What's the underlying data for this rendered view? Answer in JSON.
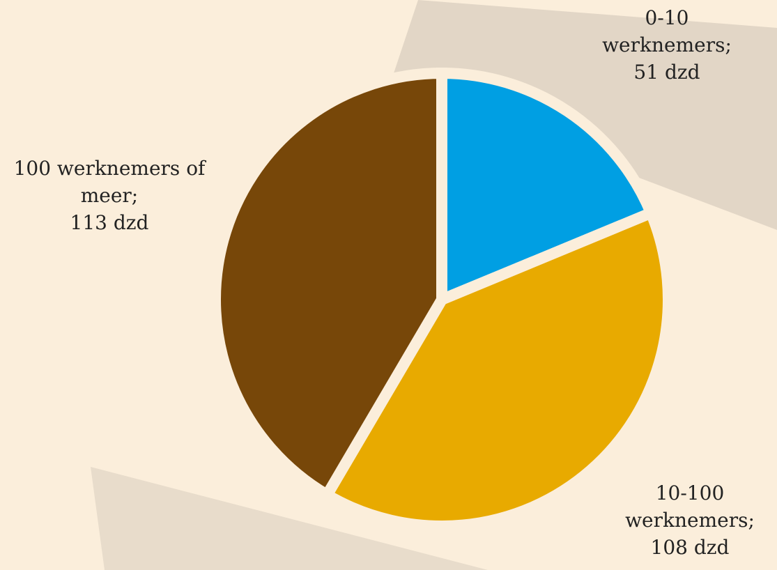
{
  "chart_data": {
    "type": "pie",
    "categories": [
      "0-10 werknemers;",
      "10-100 werknemers;",
      "100 werknemers of meer;"
    ],
    "values": [
      51,
      108,
      113
    ],
    "value_labels": [
      "51 dzd",
      "108 dzd",
      "113 dzd"
    ],
    "colors": [
      "#009fe3",
      "#e8aa00",
      "#774709"
    ]
  }
}
